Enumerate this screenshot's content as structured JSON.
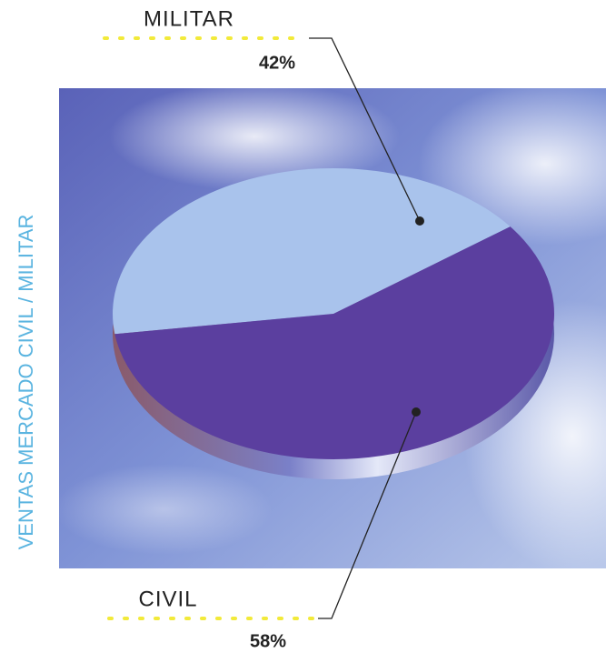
{
  "chart_data": {
    "type": "pie",
    "title": "VENTAS MERCADO CIVIL / MILITAR",
    "categories": [
      "MILITAR",
      "CIVIL"
    ],
    "values": [
      42,
      58
    ],
    "value_labels": [
      "42%",
      "58%"
    ],
    "colors": [
      "#a9c3ec",
      "#5b3f9f"
    ]
  }
}
